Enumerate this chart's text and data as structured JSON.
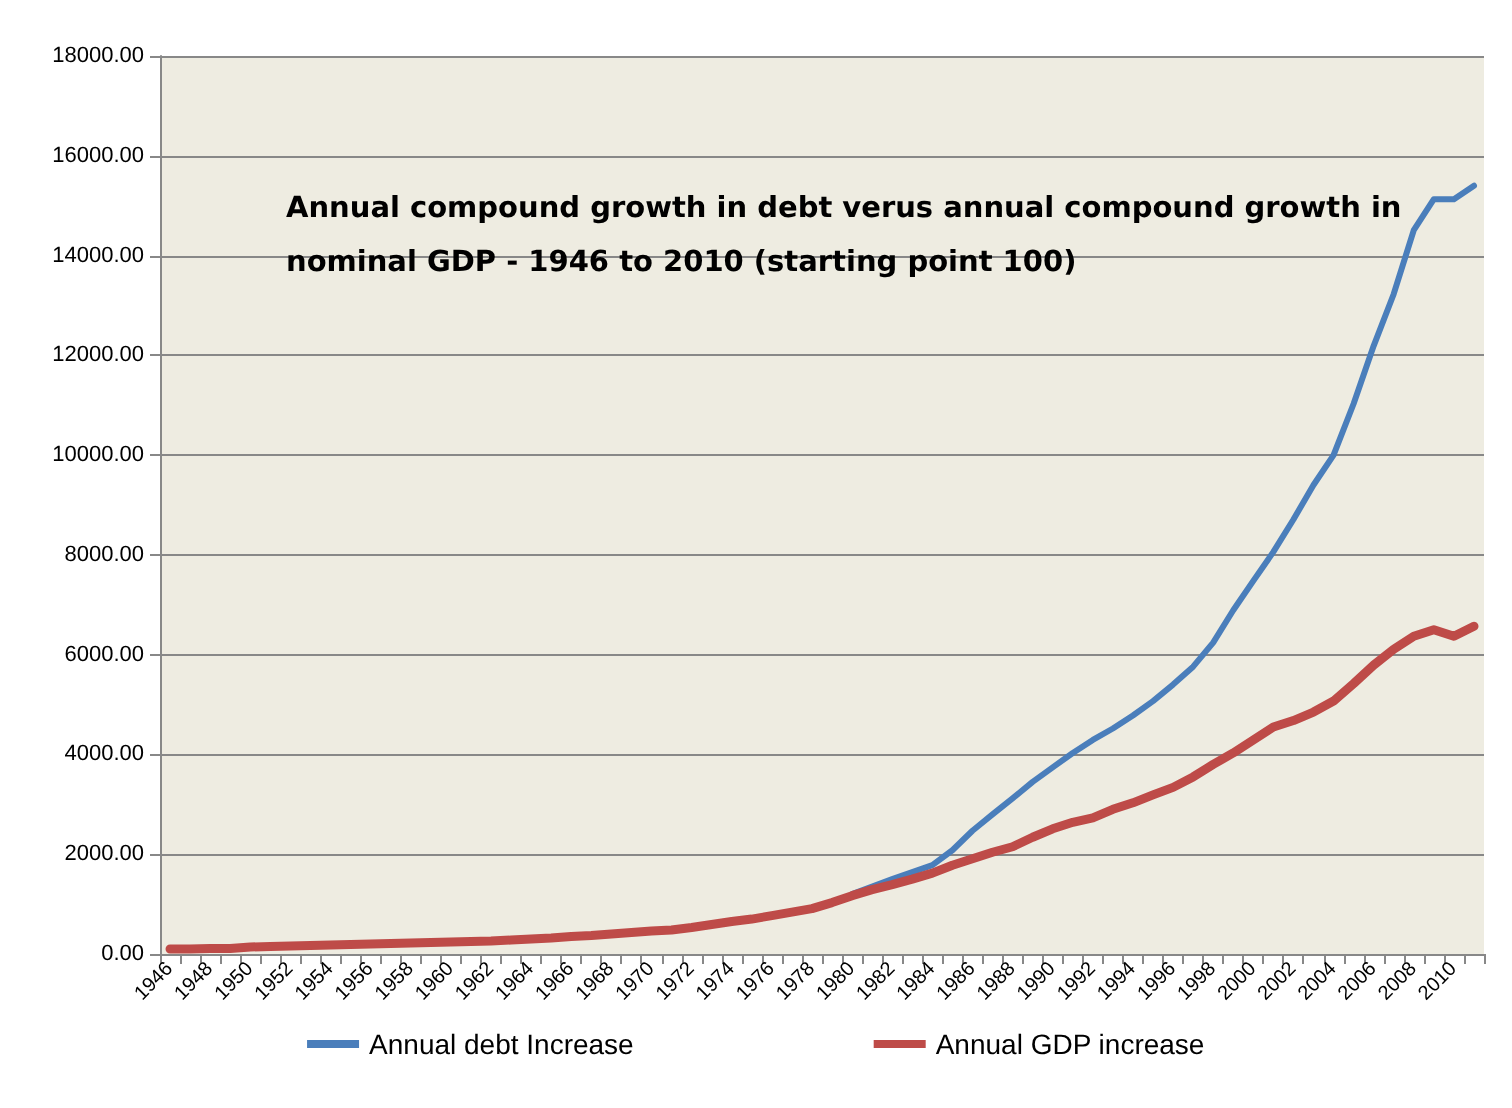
{
  "chart_data": {
    "type": "line",
    "title": "Annual compound growth in debt verus annual compound growth in nominal GDP - 1946 to 2010 (starting point 100)",
    "categories": [
      "1946",
      null,
      "1948",
      null,
      "1950",
      null,
      "1952",
      null,
      "1954",
      null,
      "1956",
      null,
      "1958",
      null,
      "1960",
      null,
      "1962",
      null,
      "1964",
      null,
      "1966",
      null,
      "1968",
      null,
      "1970",
      null,
      "1972",
      null,
      "1974",
      null,
      "1976",
      null,
      "1978",
      null,
      "1980",
      null,
      "1982",
      null,
      "1984",
      null,
      "1986",
      null,
      "1988",
      null,
      "1990",
      null,
      "1992",
      null,
      "1994",
      null,
      "1996",
      null,
      "1998",
      null,
      "2000",
      null,
      "2002",
      null,
      "2004",
      null,
      "2006",
      null,
      "2008",
      null,
      "2010",
      null
    ],
    "series": [
      {
        "name": "Annual debt Increase",
        "color": "#4a7ebb",
        "values": [
          null,
          null,
          null,
          null,
          null,
          null,
          null,
          null,
          null,
          null,
          null,
          null,
          null,
          null,
          null,
          null,
          null,
          null,
          null,
          null,
          null,
          null,
          null,
          null,
          null,
          null,
          null,
          null,
          null,
          null,
          null,
          null,
          null,
          null,
          1200,
          1350,
          1500,
          1640,
          1780,
          2080,
          2470,
          2800,
          3120,
          3450,
          3740,
          4030,
          4290,
          4520,
          4780,
          5070,
          5400,
          5760,
          6240,
          6890,
          7480,
          8060,
          8710,
          9400,
          10000,
          11030,
          12190,
          13230,
          14510,
          15130,
          15130,
          15400
        ]
      },
      {
        "name": "Annual GDP increase",
        "color": "#be4b48",
        "values": [
          100,
          100,
          110,
          110,
          140,
          150,
          160,
          170,
          180,
          190,
          200,
          210,
          220,
          230,
          240,
          250,
          260,
          280,
          300,
          320,
          350,
          370,
          400,
          430,
          460,
          480,
          530,
          590,
          650,
          700,
          770,
          840,
          910,
          1030,
          1170,
          1290,
          1390,
          1500,
          1620,
          1780,
          1910,
          2040,
          2150,
          2340,
          2510,
          2640,
          2730,
          2900,
          3030,
          3190,
          3340,
          3550,
          3800,
          4030,
          4290,
          4550,
          4680,
          4850,
          5070,
          5420,
          5790,
          6110,
          6370,
          6500,
          6370,
          6570
        ]
      }
    ],
    "ylim": [
      0,
      18000
    ],
    "yticks": [
      {
        "value": 0,
        "label": "0.00"
      },
      {
        "value": 2000,
        "label": "2000.00"
      },
      {
        "value": 4000,
        "label": "4000.00"
      },
      {
        "value": 6000,
        "label": "6000.00"
      },
      {
        "value": 8000,
        "label": "8000.00"
      },
      {
        "value": 10000,
        "label": "10000.00"
      },
      {
        "value": 12000,
        "label": "12000.00"
      },
      {
        "value": 14000,
        "label": "14000.00"
      },
      {
        "value": 16000,
        "label": "16000.00"
      },
      {
        "value": 18000,
        "label": "18000.00"
      }
    ],
    "grid": "y",
    "legend": "bottom",
    "marker": "none",
    "line_style": "solid"
  }
}
